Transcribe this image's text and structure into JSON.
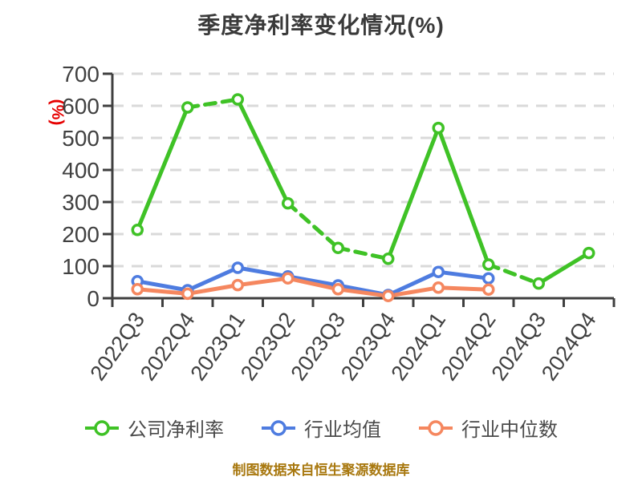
{
  "header": {
    "title": "季度净利率变化情况(%)"
  },
  "y_axis_unit": {
    "label": "(%)",
    "color": "#e60000"
  },
  "chart_data": {
    "type": "line",
    "title": "季度净利率变化情况(%)",
    "categories": [
      "2022Q3",
      "2022Q4",
      "2023Q1",
      "2023Q2",
      "2023Q3",
      "2023Q4",
      "2024Q1",
      "2024Q2",
      "2024Q3",
      "2024Q4"
    ],
    "series": [
      {
        "name": "公司净利率",
        "color": "#3fc226",
        "values": [
          213,
          595,
          620,
          296,
          157,
          123,
          531,
          105,
          46,
          141
        ],
        "dashed_segments": [
          1,
          3,
          4,
          7
        ]
      },
      {
        "name": "行业均值",
        "color": "#4e7ce0",
        "values": [
          53,
          25,
          95,
          68,
          40,
          10,
          82,
          62,
          null,
          null
        ],
        "dashed_segments": []
      },
      {
        "name": "行业中位数",
        "color": "#f5875f",
        "values": [
          28,
          14,
          41,
          62,
          28,
          7,
          33,
          27,
          null,
          null
        ],
        "dashed_segments": []
      }
    ],
    "ylabel": "(%)",
    "ylim": [
      0,
      700
    ],
    "y_tick_interval": 100,
    "y_ticks": [
      0,
      100,
      200,
      300,
      400,
      500,
      600,
      700
    ],
    "grid": "horizontal-dashed",
    "legend_position": "bottom",
    "marker": "white-filled-circle"
  },
  "legend": {
    "items": [
      {
        "label": "公司净利率",
        "color": "#3fc226"
      },
      {
        "label": "行业均值",
        "color": "#4e7ce0"
      },
      {
        "label": "行业中位数",
        "color": "#f5875f"
      }
    ]
  },
  "footer": {
    "note": "制图数据来自恒生聚源数据库",
    "color": "#a8780f"
  },
  "style": {
    "axis_color": "#3f3f3f",
    "tick_label_color": "#404040",
    "grid_color": "#d9d9d9"
  }
}
